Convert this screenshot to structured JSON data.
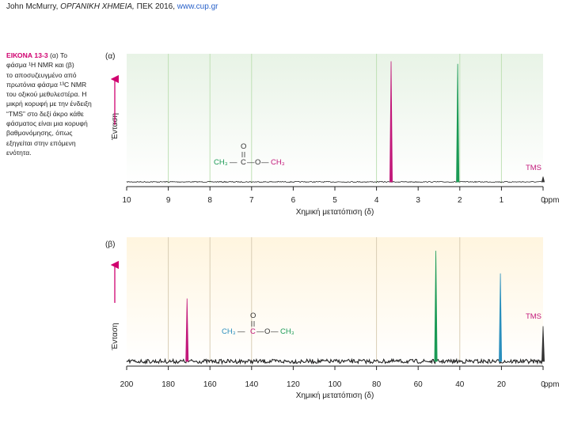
{
  "header": {
    "author": "John McMurry,",
    "book_title": "ΟΡΓΑΝΙΚΗ ΧΗΜΕΙΑ,",
    "publisher_year": "ΠΕΚ 2016,",
    "url": "www.cup.gr"
  },
  "caption": {
    "figure_label": "ΕΙΚΟΝΑ 13-3",
    "lines": [
      "(α) Το",
      "φάσμα ¹H NMR και (β)",
      "το αποσυζευγμένο από",
      "πρωτόνια φάσμα ¹³C NMR",
      "του οξικού μεθυλεστέρα. Η",
      "μικρή κορυφή με την ένδειξη",
      "“TMS” στο δεξί άκρο κάθε",
      "φάσματος είναι μια κορυφή",
      "βαθμονόμησης, όπως",
      "εξηγείται στην επόμενη",
      "ενότητα."
    ]
  },
  "chart_data": [
    {
      "type": "line",
      "panel_label": "(α)",
      "xlabel": "Χημική μετατόπιση (δ)",
      "ylabel": "Ένταση",
      "x_unit": "ppm",
      "xlim": [
        10,
        0
      ],
      "x_ticks": [
        10,
        9,
        8,
        7,
        6,
        5,
        4,
        3,
        2,
        1,
        0
      ],
      "grid_x": [
        9,
        8,
        7,
        4,
        2,
        1
      ],
      "background": [
        "#e8f3e6",
        "#ffffff"
      ],
      "peaks": [
        {
          "x": 3.65,
          "height": 0.93,
          "color": "#c2187a"
        },
        {
          "x": 2.05,
          "height": 0.91,
          "color": "#1a9a55"
        },
        {
          "x": 0.0,
          "height": 0.04,
          "color": "#333333"
        }
      ],
      "annotation_tms": "TMS",
      "structure": {
        "left": "CH₃",
        "center": "C",
        "right": "CH₃",
        "top": "O",
        "bond": "—",
        "bridge": "O"
      }
    },
    {
      "type": "line",
      "panel_label": "(β)",
      "xlabel": "Χημική μετατόπιση (δ)",
      "ylabel": "Ένταση",
      "x_unit": "ppm",
      "xlim": [
        200,
        0
      ],
      "x_ticks": [
        200,
        180,
        160,
        140,
        120,
        100,
        80,
        60,
        40,
        20,
        0
      ],
      "grid_x": [
        180,
        160,
        140,
        80,
        40
      ],
      "background": [
        "#fff5df",
        "#ffffff"
      ],
      "peaks": [
        {
          "x": 171,
          "height": 0.5,
          "color": "#c2187a"
        },
        {
          "x": 51.5,
          "height": 0.88,
          "color": "#1a9a55"
        },
        {
          "x": 20.5,
          "height": 0.7,
          "color": "#2a8fbd"
        },
        {
          "x": 0.0,
          "height": 0.28,
          "color": "#333333"
        }
      ],
      "annotation_tms": "TMS",
      "structure": {
        "left": "CH₃",
        "center": "C",
        "right": "CH₃",
        "top": "O",
        "bond": "—",
        "bridge": "O"
      }
    }
  ]
}
